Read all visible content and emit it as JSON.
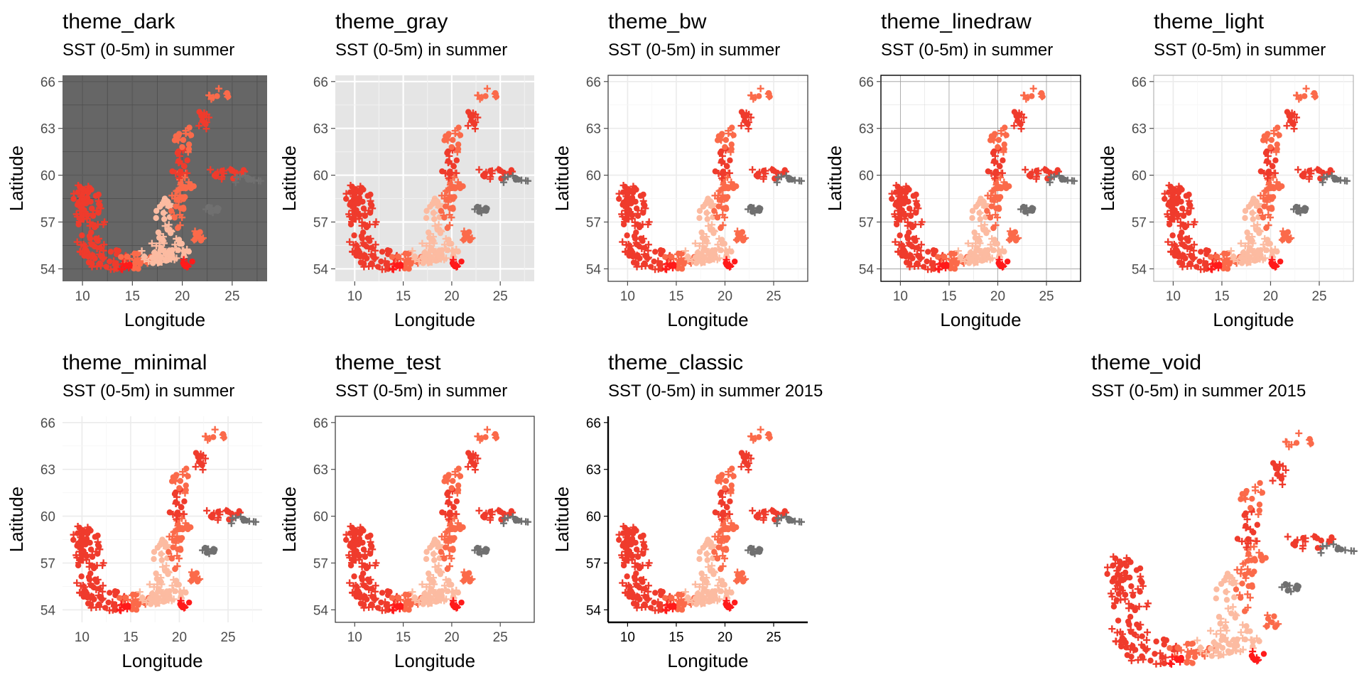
{
  "colors": {
    "dark_panel": "#666666",
    "gray_panel": "#e5e5e5",
    "sst_low": "#fcbba1",
    "sst_mid": "#fb6a4a",
    "sst_high": "#ef3b2c",
    "sst_max": "#ff1a1a",
    "na_gray": "#707070"
  },
  "chart_data": [
    {
      "type": "scatter",
      "theme": "theme_dark",
      "title": "theme_dark",
      "subtitle": "SST (0-5m) in summer",
      "xlabel": "Longitude",
      "ylabel": "Latitude",
      "x_ticks": [
        "10",
        "15",
        "20",
        "25"
      ],
      "y_ticks": [
        "54",
        "57",
        "60",
        "63",
        "66"
      ],
      "xlim": [
        8,
        28.5
      ],
      "ylim": [
        53.2,
        66.4
      ],
      "grid": true
    },
    {
      "type": "scatter",
      "theme": "theme_gray",
      "title": "theme_gray",
      "subtitle": "SST (0-5m) in summer",
      "xlabel": "Longitude",
      "ylabel": "Latitude",
      "x_ticks": [
        "10",
        "15",
        "20",
        "25"
      ],
      "y_ticks": [
        "54",
        "57",
        "60",
        "63",
        "66"
      ],
      "xlim": [
        8,
        28.5
      ],
      "ylim": [
        53.2,
        66.4
      ],
      "grid": true
    },
    {
      "type": "scatter",
      "theme": "theme_bw",
      "title": "theme_bw",
      "subtitle": "SST (0-5m) in summer",
      "xlabel": "Longitude",
      "ylabel": "Latitude",
      "x_ticks": [
        "10",
        "15",
        "20",
        "25"
      ],
      "y_ticks": [
        "54",
        "57",
        "60",
        "63",
        "66"
      ],
      "xlim": [
        8,
        28.5
      ],
      "ylim": [
        53.2,
        66.4
      ],
      "grid": true
    },
    {
      "type": "scatter",
      "theme": "theme_linedraw",
      "title": "theme_linedraw",
      "subtitle": "SST (0-5m) in summer",
      "xlabel": "Longitude",
      "ylabel": "Latitude",
      "x_ticks": [
        "10",
        "15",
        "20",
        "25"
      ],
      "y_ticks": [
        "54",
        "57",
        "60",
        "63",
        "66"
      ],
      "xlim": [
        8,
        28.5
      ],
      "ylim": [
        53.2,
        66.4
      ],
      "grid": true
    },
    {
      "type": "scatter",
      "theme": "theme_light",
      "title": "theme_light",
      "subtitle": "SST (0-5m) in summer",
      "xlabel": "Longitude",
      "ylabel": "Latitude",
      "x_ticks": [
        "10",
        "15",
        "20",
        "25"
      ],
      "y_ticks": [
        "54",
        "57",
        "60",
        "63",
        "66"
      ],
      "xlim": [
        8,
        28.5
      ],
      "ylim": [
        53.2,
        66.4
      ],
      "grid": true
    },
    {
      "type": "scatter",
      "theme": "theme_minimal",
      "title": "theme_minimal",
      "subtitle": "SST (0-5m) in summer",
      "xlabel": "Longitude",
      "ylabel": "Latitude",
      "x_ticks": [
        "10",
        "15",
        "20",
        "25"
      ],
      "y_ticks": [
        "54",
        "57",
        "60",
        "63",
        "66"
      ],
      "xlim": [
        8,
        28.5
      ],
      "ylim": [
        53.2,
        66.4
      ],
      "grid": true
    },
    {
      "type": "scatter",
      "theme": "theme_test",
      "title": "theme_test",
      "subtitle": "SST (0-5m) in summer",
      "xlabel": "Longitude",
      "ylabel": "Latitude",
      "x_ticks": [
        "10",
        "15",
        "20",
        "25"
      ],
      "y_ticks": [
        "54",
        "57",
        "60",
        "63",
        "66"
      ],
      "xlim": [
        8,
        28.5
      ],
      "ylim": [
        53.2,
        66.4
      ],
      "grid": false
    },
    {
      "type": "scatter",
      "theme": "theme_classic",
      "title": "theme_classic",
      "subtitle": "SST (0-5m) in summer 2015",
      "xlabel": "Longitude",
      "ylabel": "Latitude",
      "x_ticks": [
        "10",
        "15",
        "20",
        "25"
      ],
      "y_ticks": [
        "54",
        "57",
        "60",
        "63",
        "66"
      ],
      "xlim": [
        8,
        28.5
      ],
      "ylim": [
        53.2,
        66.4
      ],
      "grid": false
    },
    {
      "type": "scatter",
      "theme": "theme_void",
      "title": "theme_void",
      "subtitle": "SST (0-5m) in summer 2015",
      "xlabel": "",
      "ylabel": "",
      "x_ticks": [],
      "y_ticks": [],
      "xlim": [
        8,
        28.5
      ],
      "ylim": [
        53.2,
        66.4
      ],
      "grid": false
    }
  ]
}
